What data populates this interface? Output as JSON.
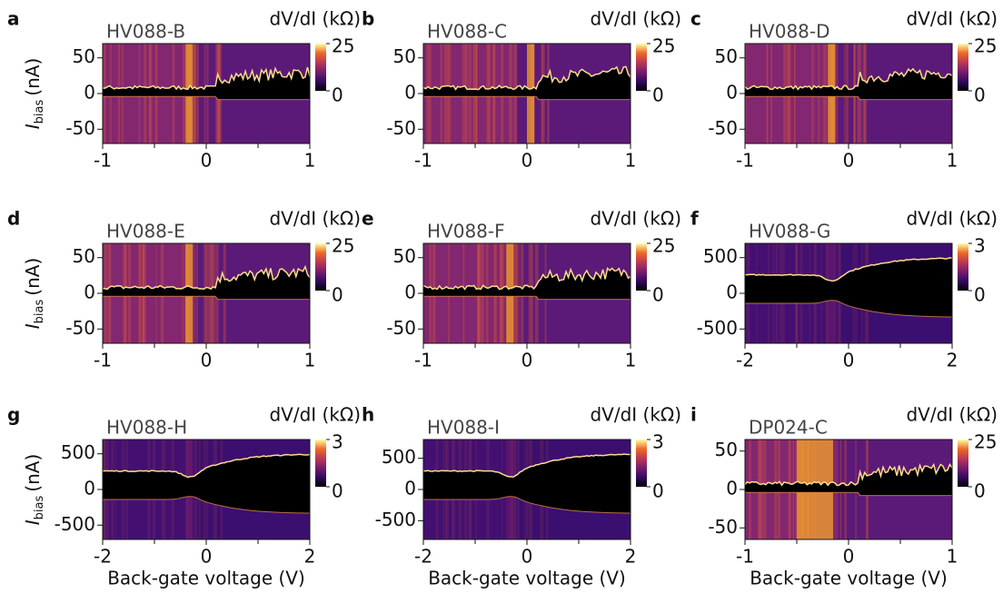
{
  "chart_data": [
    {
      "type": "heatmap",
      "panel_label": "a",
      "title": "HV088-B",
      "colorbar_label": "dV/dI (kΩ)",
      "ylabel": "I",
      "ylabel_subscript": "bias",
      "ylabel_unit": "(nA)",
      "xlim": [
        -1,
        1
      ],
      "xticks": [
        -1,
        0,
        1
      ],
      "xminorticks": [
        -0.5,
        0.5
      ],
      "ylim": [
        -70,
        70
      ],
      "yticks": [
        -50,
        0,
        50
      ],
      "clim": [
        0,
        25
      ],
      "cticks": [
        0,
        25
      ]
    },
    {
      "type": "heatmap",
      "panel_label": "b",
      "title": "HV088-C",
      "colorbar_label": "dV/dI (kΩ)",
      "xlim": [
        -1,
        1
      ],
      "xticks": [
        -1,
        0,
        1
      ],
      "xminorticks": [
        -0.5,
        0.5
      ],
      "ylim": [
        -70,
        70
      ],
      "yticks": [
        -50,
        0,
        50
      ],
      "clim": [
        0,
        25
      ],
      "cticks": [
        0,
        25
      ]
    },
    {
      "type": "heatmap",
      "panel_label": "c",
      "title": "HV088-D",
      "colorbar_label": "dV/dI (kΩ)",
      "xlim": [
        -1,
        1
      ],
      "xticks": [
        -1,
        0,
        1
      ],
      "xminorticks": [
        -0.5,
        0.5
      ],
      "ylim": [
        -70,
        70
      ],
      "yticks": [
        -50,
        0,
        50
      ],
      "clim": [
        0,
        25
      ],
      "cticks": [
        0,
        25
      ]
    },
    {
      "type": "heatmap",
      "panel_label": "d",
      "title": "HV088-E",
      "colorbar_label": "dV/dI (kΩ)",
      "ylabel": "I",
      "ylabel_subscript": "bias",
      "ylabel_unit": "(nA)",
      "xlim": [
        -1,
        1
      ],
      "xticks": [
        -1,
        0,
        1
      ],
      "xminorticks": [
        -0.5,
        0.5
      ],
      "ylim": [
        -70,
        70
      ],
      "yticks": [
        -50,
        0,
        50
      ],
      "clim": [
        0,
        25
      ],
      "cticks": [
        0,
        25
      ]
    },
    {
      "type": "heatmap",
      "panel_label": "e",
      "title": "HV088-F",
      "colorbar_label": "dV/dI (kΩ)",
      "xlim": [
        -1,
        1
      ],
      "xticks": [
        -1,
        0,
        1
      ],
      "xminorticks": [
        -0.5,
        0.5
      ],
      "ylim": [
        -70,
        70
      ],
      "yticks": [
        -50,
        0,
        50
      ],
      "clim": [
        0,
        25
      ],
      "cticks": [
        0,
        25
      ]
    },
    {
      "type": "heatmap",
      "panel_label": "f",
      "title": "HV088-G",
      "colorbar_label": "dV/dI (kΩ)",
      "xlim": [
        -2,
        2
      ],
      "xticks": [
        -2,
        0,
        2
      ],
      "xminorticks": [
        -1,
        1
      ],
      "ylim": [
        -700,
        700
      ],
      "yticks": [
        -500,
        0,
        500
      ],
      "clim": [
        0,
        3
      ],
      "cticks": [
        0,
        3
      ]
    },
    {
      "type": "heatmap",
      "panel_label": "g",
      "title": "HV088-H",
      "colorbar_label": "dV/dI (kΩ)",
      "ylabel": "I",
      "ylabel_subscript": "bias",
      "ylabel_unit": "(nA)",
      "xlabel": "Back-gate voltage (V)",
      "xlim": [
        -2,
        2
      ],
      "xticks": [
        -2,
        0,
        2
      ],
      "xminorticks": [
        -1,
        1
      ],
      "ylim": [
        -700,
        700
      ],
      "yticks": [
        -500,
        0,
        500
      ],
      "clim": [
        0,
        3
      ],
      "cticks": [
        0,
        3
      ]
    },
    {
      "type": "heatmap",
      "panel_label": "h",
      "title": "HV088-I",
      "colorbar_label": "dV/dI (kΩ)",
      "xlabel": "Back-gate voltage (V)",
      "xlim": [
        -2,
        2
      ],
      "xticks": [
        -2,
        0,
        2
      ],
      "xminorticks": [
        -1,
        1
      ],
      "ylim": [
        -800,
        800
      ],
      "yticks": [
        -500,
        0,
        500
      ],
      "clim": [
        0,
        3
      ],
      "cticks": [
        0,
        3
      ]
    },
    {
      "type": "heatmap",
      "panel_label": "i",
      "title": "DP024-C",
      "colorbar_label": "dV/dI (kΩ)",
      "xlabel": "Back-gate voltage (V)",
      "xlim": [
        -1,
        1
      ],
      "xticks": [
        -1,
        0,
        1
      ],
      "xminorticks": [
        -0.5,
        0.5
      ],
      "ylim": [
        -65,
        65
      ],
      "yticks": [
        -50,
        0,
        50
      ],
      "clim": [
        0,
        25
      ],
      "cticks": [
        0,
        25
      ]
    }
  ]
}
